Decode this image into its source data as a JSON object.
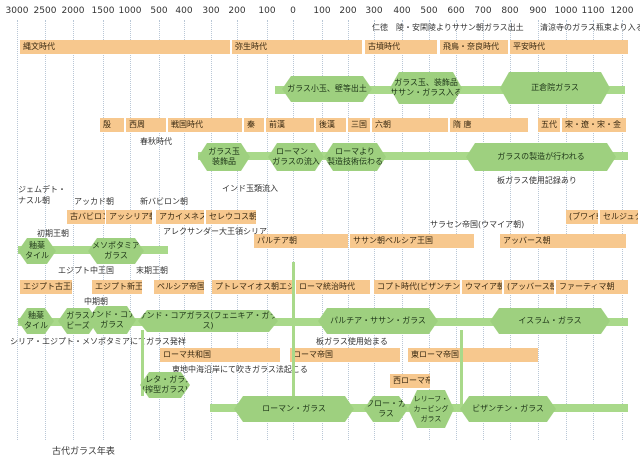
{
  "years": [
    "3000",
    "2500",
    "2000",
    "1500",
    "1000",
    "500",
    "400",
    "300",
    "200",
    "100",
    "0",
    "100",
    "200",
    "300",
    "400",
    "500",
    "600",
    "700",
    "800",
    "900",
    "1000",
    "1100",
    "1200"
  ],
  "japan": {
    "note_top1": "仁徳　陵・安閑陵よりササン朝ガラス出土",
    "note_top2": "清涼寺のガラス瓶束より入る",
    "jomon": "縄文時代",
    "yayoi": "弥生時代",
    "kofun": "古墳時代",
    "asuka": "飛鳥・奈良時代",
    "heian": "平安時代",
    "glass1": "ガラス小玉、壁等出土",
    "glass2": "ガラス玉、装飾品\nササン・ガラス入る",
    "shosoin": "正倉院ガラス"
  },
  "china": {
    "yin": "殷",
    "xizhou": "西周",
    "sengoku": "戦国時代",
    "qin": "秦",
    "qianhan": "前漢",
    "houhan": "後漢",
    "sanguo": "三国",
    "liuchao": "六朝",
    "suitang": "隋 唐",
    "wudai": "五代",
    "song": "宋・遼・宋・金",
    "shunqiu": "春秋時代",
    "glass_beads": "ガラス玉\n装飾品",
    "roman_inflow": "ローマン・\nガラスの流入",
    "roman_tech": "ローマより\n製造技術伝わる",
    "glass_made": "ガラスの製造が行われる",
    "plate_glass": "板ガラス使用記録あり",
    "india_beads": "インド玉類流入"
  },
  "mesopotamia": {
    "jemdet": "ジェムデト・\nナスル朝",
    "akkad": "アッカド朝",
    "newbabylon_note": "新バビロン朝",
    "old_babylon": "古バビロン朝",
    "assyria": "アッシリア朝",
    "achaemenid": "アカイメネス朝",
    "seleucid": "セレウコス朝",
    "alexander": "アレクサンダー大王領シリア",
    "saracen": "サラセン帝国(ウマイア朝)",
    "buyid": "(ブワイ朝)",
    "seljuk": "セルジュク・トルコ",
    "parthia": "パルチア朝",
    "sasanian": "ササン朝ペルシア王国",
    "abbasid": "アッバース朝",
    "glaze_tile": "釉薬\nタイル",
    "meso_glass": "メソポタミア\nガラス",
    "first_dyn": "初期王朝",
    "mid_kingdom_note": "エジプト中王国"
  },
  "egypt": {
    "late_period_note": "末期王朝",
    "old_kingdom": "エジプト古王国",
    "new_kingdom": "エジプト新王国",
    "persia": "ペルシア帝国領",
    "ptolemy": "プトレマイオス朝エジプト王国",
    "roman_rule": "ローマ統治時代",
    "coptic": "コプト時代(ビザンチン領)",
    "umayyad": "ウマイア朝",
    "abbasid2": "(アッバース朝)",
    "fatimid": "ファーティマ朝",
    "middle_kingdom": "中期朝",
    "glaze_tile2": "釉薬\nタイル",
    "glass_beads2": "ガラス\nビーズ",
    "sandcore": "サンド・コア\nガラス",
    "sandcore_fen": "サンド・コアガラス(フェニキア・ガラス)",
    "parthia_sasan_glass": "パルチア・ササン・ガラス",
    "islamic_glass": "イスラム・ガラス",
    "syria_note": "シリア・エジプト・メソポタミアにてガラス発祥",
    "plate_glass2": "板ガラス使用始まる"
  },
  "rome": {
    "republic": "ローマ共和国",
    "empire": "ローマ帝国",
    "east_empire": "東ローマ帝国",
    "west_empire": "西ローマ帝国",
    "blowing_note": "東地中海沿岸にて吹きガラス法起こる",
    "crete_glass": "クレタ・ガラス\n(搾型ガラス)",
    "roman_glass": "ローマン・ガラス",
    "clovis_glass": "クロー・ガラス",
    "relief_glass": "レリーフ・\nカービング\nガラス",
    "byzantine_glass": "ビザンチン・ガラス"
  },
  "caption": "古代ガラス年表"
}
